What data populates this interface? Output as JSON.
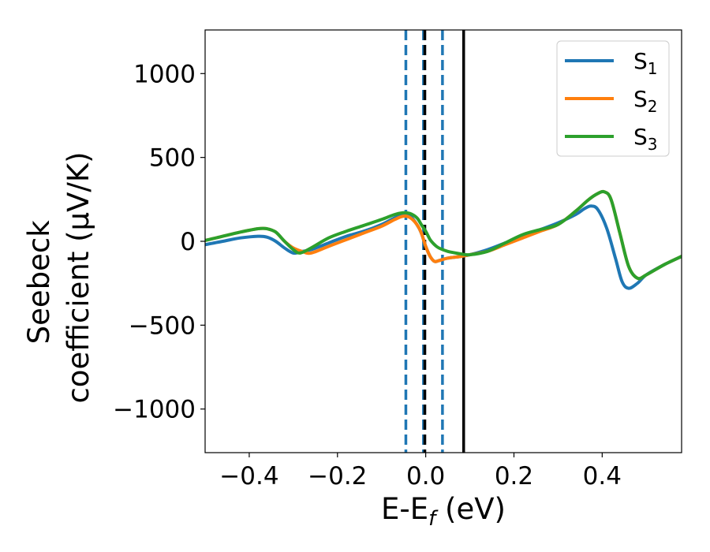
{
  "chart_data": {
    "type": "line",
    "xlabel": {
      "base": "E-E",
      "sub": "f",
      "unit": " (eV)"
    },
    "ylabel": {
      "line1": "Seebeck",
      "line2": "coefficient  (μV/K)"
    },
    "xlim": [
      -0.5,
      0.58
    ],
    "ylim": [
      -1260,
      1260
    ],
    "xticks": [
      -0.4,
      -0.2,
      0.0,
      0.2,
      0.4
    ],
    "xtick_labels": [
      "−0.4",
      "−0.2",
      "0.0",
      "0.2",
      "0.4"
    ],
    "yticks": [
      -1000,
      -500,
      0,
      500,
      1000
    ],
    "ytick_labels": [
      "−1000",
      "−500",
      "0",
      "500",
      "1000"
    ],
    "grid": false,
    "legend": {
      "placement": "top-right"
    },
    "series": [
      {
        "name": "S",
        "sub": "1",
        "color": "#1f77b4",
        "x": [
          -0.5,
          -0.46,
          -0.42,
          -0.38,
          -0.36,
          -0.34,
          -0.32,
          -0.3,
          -0.28,
          -0.26,
          -0.22,
          -0.18,
          -0.14,
          -0.1,
          -0.07,
          -0.05,
          -0.035,
          -0.02,
          -0.01,
          0.0,
          0.01,
          0.02,
          0.03,
          0.05,
          0.08,
          0.1,
          0.14,
          0.18,
          0.22,
          0.26,
          0.3,
          0.34,
          0.36,
          0.375,
          0.39,
          0.41,
          0.43,
          0.445,
          0.46,
          0.48,
          0.5,
          0.54,
          0.58
        ],
        "y": [
          -20,
          0,
          20,
          30,
          25,
          0,
          -40,
          -70,
          -60,
          -50,
          -10,
          30,
          60,
          100,
          140,
          160,
          150,
          100,
          50,
          -30,
          -90,
          -120,
          -115,
          -100,
          -90,
          -80,
          -50,
          -10,
          30,
          70,
          110,
          160,
          195,
          210,
          190,
          80,
          -100,
          -240,
          -280,
          -250,
          -200,
          -140,
          -90
        ]
      },
      {
        "name": "S",
        "sub": "2",
        "color": "#ff7f0e",
        "x": [
          -0.5,
          -0.46,
          -0.42,
          -0.38,
          -0.36,
          -0.34,
          -0.32,
          -0.3,
          -0.28,
          -0.26,
          -0.22,
          -0.18,
          -0.14,
          -0.1,
          -0.07,
          -0.05,
          -0.035,
          -0.02,
          -0.01,
          0.0,
          0.01,
          0.02,
          0.03,
          0.05,
          0.08,
          0.1,
          0.14,
          0.18,
          0.22,
          0.26,
          0.3,
          0.34,
          0.37,
          0.39,
          0.405,
          0.42,
          0.44,
          0.46,
          0.48,
          0.5,
          0.54,
          0.58
        ],
        "y": [
          5,
          30,
          55,
          75,
          75,
          55,
          0,
          -40,
          -60,
          -70,
          -30,
          10,
          50,
          90,
          130,
          150,
          140,
          100,
          50,
          -30,
          -90,
          -120,
          -115,
          -100,
          -90,
          -80,
          -60,
          -20,
          20,
          60,
          100,
          180,
          250,
          285,
          295,
          250,
          50,
          -150,
          -220,
          -200,
          -140,
          -90
        ]
      },
      {
        "name": "S",
        "sub": "3",
        "color": "#2ca02c",
        "x": [
          -0.5,
          -0.46,
          -0.42,
          -0.38,
          -0.36,
          -0.34,
          -0.32,
          -0.3,
          -0.285,
          -0.26,
          -0.22,
          -0.18,
          -0.14,
          -0.1,
          -0.07,
          -0.05,
          -0.035,
          -0.02,
          -0.01,
          0.0,
          0.01,
          0.02,
          0.03,
          0.05,
          0.08,
          0.1,
          0.14,
          0.18,
          0.22,
          0.26,
          0.3,
          0.34,
          0.37,
          0.39,
          0.405,
          0.42,
          0.44,
          0.46,
          0.48,
          0.5,
          0.54,
          0.58
        ],
        "y": [
          5,
          30,
          55,
          75,
          75,
          55,
          0,
          -50,
          -70,
          -40,
          20,
          60,
          95,
          130,
          160,
          170,
          165,
          140,
          100,
          60,
          10,
          -20,
          -40,
          -60,
          -75,
          -80,
          -60,
          -10,
          40,
          70,
          100,
          180,
          250,
          285,
          295,
          250,
          50,
          -150,
          -220,
          -200,
          -140,
          -90
        ]
      }
    ],
    "vertical_lines": [
      {
        "x": -0.045,
        "style": "dashed",
        "color": "#1f77b4"
      },
      {
        "x": -0.005,
        "style": "dashed",
        "color": "#1f77b4"
      },
      {
        "x": 0.038,
        "style": "dashed",
        "color": "#1f77b4"
      },
      {
        "x": -0.002,
        "style": "dashed",
        "color": "#000000"
      },
      {
        "x": 0.086,
        "style": "solid",
        "color": "#000000"
      }
    ]
  }
}
